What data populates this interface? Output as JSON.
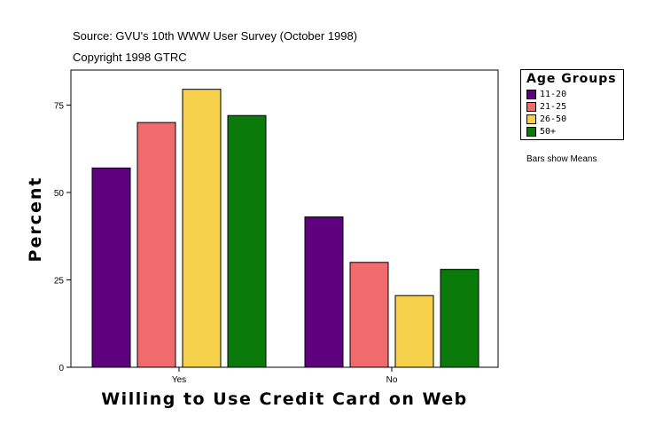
{
  "header": {
    "source": "Source: GVU's 10th WWW User Survey (October 1998)",
    "copyright": "Copyright 1998 GTRC"
  },
  "legend": {
    "title": "Age Groups",
    "entries": [
      {
        "label": "11-20",
        "color": "#5f007f"
      },
      {
        "label": "21-25",
        "color": "#f06b6e"
      },
      {
        "label": "26-50",
        "color": "#f5d04a"
      },
      {
        "label": "50+",
        "color": "#0a7a0a"
      }
    ]
  },
  "note": "Bars show Means",
  "chart_data": {
    "type": "bar",
    "categories": [
      "Yes",
      "No"
    ],
    "series": [
      {
        "name": "11-20",
        "values": [
          57,
          43
        ],
        "color": "#5f007f"
      },
      {
        "name": "21-25",
        "values": [
          70,
          30
        ],
        "color": "#f06b6e"
      },
      {
        "name": "26-50",
        "values": [
          79.5,
          20.5
        ],
        "color": "#f5d04a"
      },
      {
        "name": "50+",
        "values": [
          72,
          28
        ],
        "color": "#0a7a0a"
      }
    ],
    "xlabel": "Willing to Use Credit Card on Web",
    "ylabel": "Percent",
    "ylim": [
      0,
      85
    ],
    "yticks": [
      "0",
      "25",
      "50",
      "75"
    ],
    "legend_title": "Age Groups",
    "legend_position": "right",
    "grid": false
  }
}
